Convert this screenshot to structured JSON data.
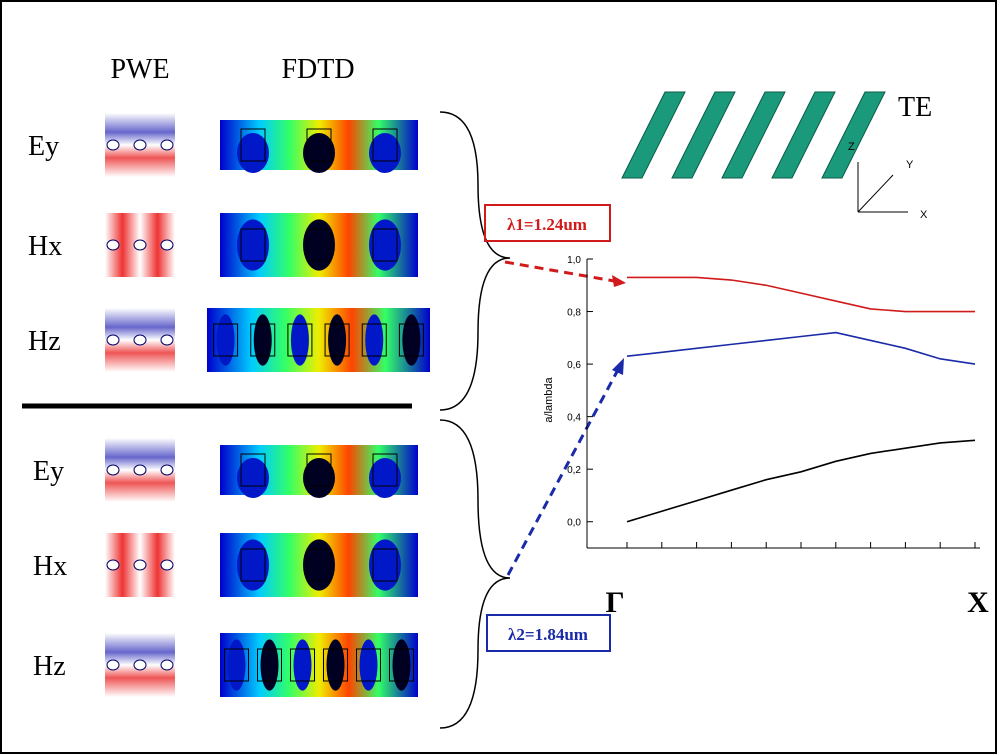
{
  "headers": {
    "pwe": "PWE",
    "fdtd": "FDTD"
  },
  "rows": [
    "Ey",
    "Hx",
    "Hz",
    "Ey",
    "Hx",
    "Hz"
  ],
  "polarization": "TE",
  "axes": {
    "z": "Z",
    "y": "Y",
    "x": "X"
  },
  "annotations": {
    "lambda1": "λ1=1.24um",
    "lambda2": "λ2=1.84um"
  },
  "chart_data": {
    "type": "line",
    "ylabel": "a/lambda",
    "categories": [
      "Γ",
      null,
      null,
      null,
      null,
      null,
      null,
      null,
      null,
      null,
      "X"
    ],
    "ylim": [
      -0.1,
      1.0
    ],
    "yticks": [
      {
        "value": 0,
        "label": "0,0"
      },
      {
        "value": 0.2,
        "label": "0,2"
      },
      {
        "value": 0.4,
        "label": "0,4"
      },
      {
        "value": 0.6,
        "label": "0,6"
      },
      {
        "value": 0.8,
        "label": "0,8"
      },
      {
        "value": 1,
        "label": "1,0"
      }
    ],
    "series": [
      {
        "color": "#d11a1a",
        "values": [
          0.93,
          0.93,
          0.93,
          0.92,
          0.9,
          0.87,
          0.84,
          0.81,
          0.8,
          0.8,
          0.8
        ]
      },
      {
        "color": "#1a2aa8",
        "values": [
          0.63,
          0.645,
          0.66,
          0.675,
          0.69,
          0.705,
          0.72,
          0.69,
          0.66,
          0.62,
          0.6
        ]
      },
      {
        "color": "#000000",
        "values": [
          0,
          0.04,
          0.08,
          0.12,
          0.16,
          0.19,
          0.23,
          0.26,
          0.28,
          0.3,
          0.31
        ]
      }
    ]
  }
}
